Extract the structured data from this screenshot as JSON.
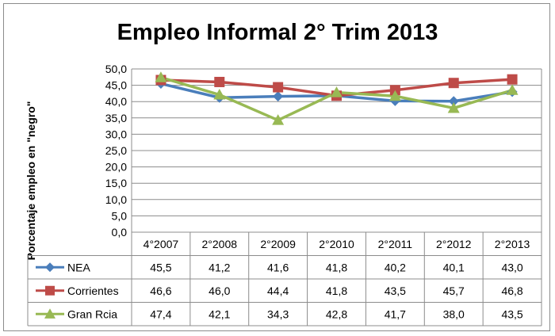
{
  "chart_data": {
    "type": "line",
    "title": "Empleo Informal 2° Trim 2013",
    "ylabel": "Porcentaje empleo en \"negro\"",
    "ylim": [
      0,
      50
    ],
    "yticks": [
      "0,0",
      "5,0",
      "10,0",
      "15,0",
      "20,0",
      "25,0",
      "30,0",
      "35,0",
      "40,0",
      "45,0",
      "50,0"
    ],
    "categories": [
      "4°2007",
      "2°2008",
      "2°2009",
      "2°2010",
      "2°2011",
      "2°2012",
      "2°2013"
    ],
    "grid": true,
    "legend_placement": "data-table",
    "series": [
      {
        "name": "NEA",
        "color": "#4a7ebb",
        "marker": "diamond",
        "values": [
          45.5,
          41.2,
          41.6,
          41.8,
          40.2,
          40.1,
          43.0
        ],
        "labels": [
          "45,5",
          "41,2",
          "41,6",
          "41,8",
          "40,2",
          "40,1",
          "43,0"
        ]
      },
      {
        "name": "Corrientes",
        "color": "#be4b48",
        "marker": "square",
        "values": [
          46.6,
          46.0,
          44.4,
          41.8,
          43.5,
          45.7,
          46.8
        ],
        "labels": [
          "46,6",
          "46,0",
          "44,4",
          "41,8",
          "43,5",
          "45,7",
          "46,8"
        ]
      },
      {
        "name": "Gran Rcia",
        "color": "#98b954",
        "marker": "triangle",
        "values": [
          47.4,
          42.1,
          34.3,
          42.8,
          41.7,
          38.0,
          43.5
        ],
        "labels": [
          "47,4",
          "42,1",
          "34,3",
          "42,8",
          "41,7",
          "38,0",
          "43,5"
        ]
      }
    ]
  }
}
